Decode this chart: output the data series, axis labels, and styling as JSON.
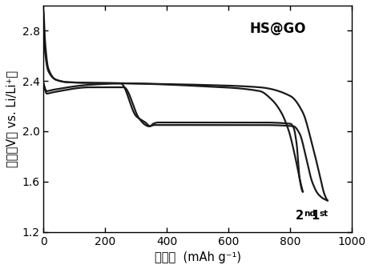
{
  "xlabel_zh": "比容量",
  "xlabel_en": "(mAh g⁻¹)",
  "ylabel_zh": "电压（V， vs. Li/Li⁺）",
  "xlim": [
    0,
    1000
  ],
  "ylim": [
    1.2,
    3.0
  ],
  "xticks": [
    0,
    200,
    400,
    600,
    800,
    1000
  ],
  "yticks": [
    1.2,
    1.6,
    2.0,
    2.4,
    2.8
  ],
  "annotation_hs": "HS@GO",
  "line_color": "#1a1a1a",
  "background_color": "#ffffff"
}
